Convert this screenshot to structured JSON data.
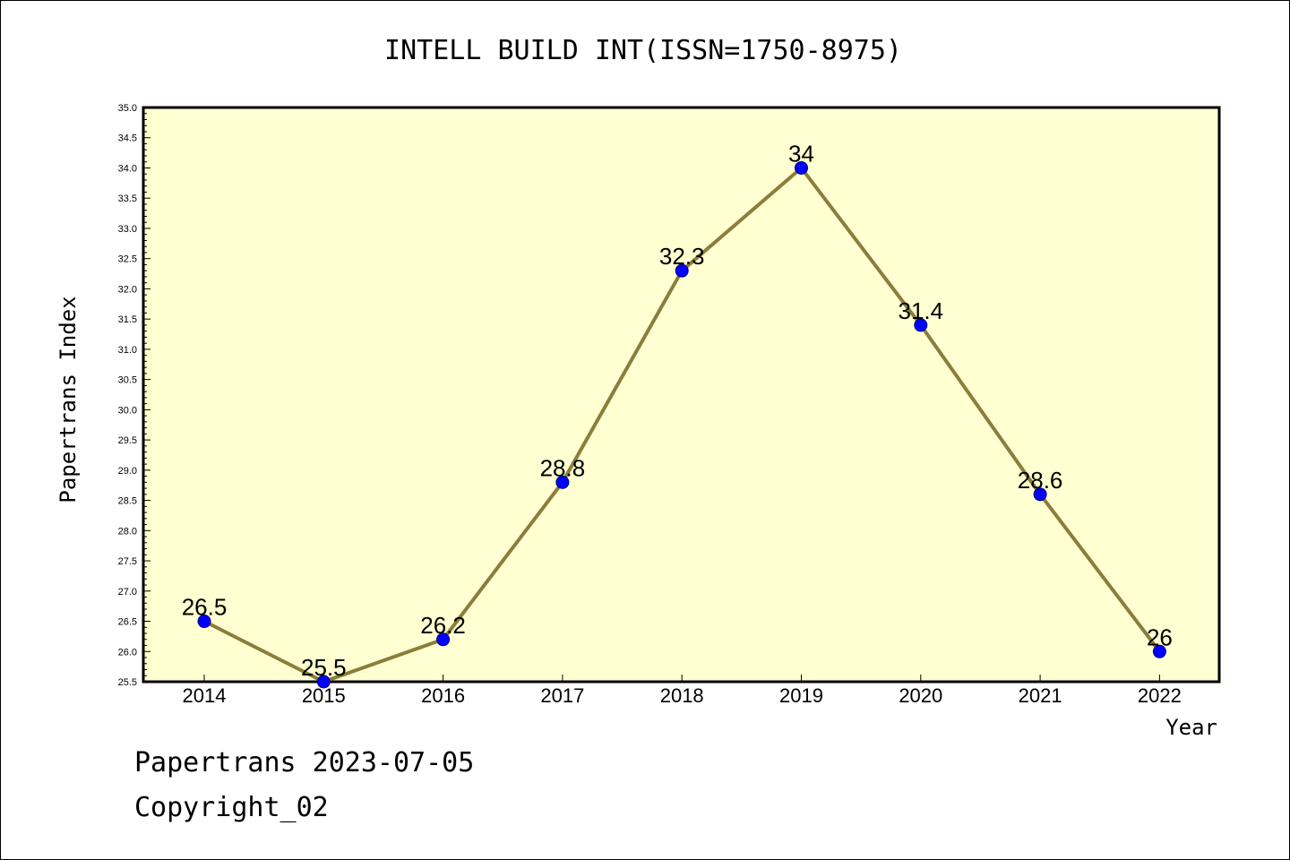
{
  "footer": {
    "date_line": "Papertrans 2023-07-05",
    "copyright": "Copyright_02"
  },
  "colors": {
    "plot_background": "#ffffd1",
    "line": "#8b7d3a",
    "marker": "#0000ff"
  },
  "chart_data": {
    "type": "line",
    "title": "INTELL BUILD INT(ISSN=1750-8975)",
    "xlabel": "Year",
    "ylabel": "Papertrans Index",
    "categories": [
      "2014",
      "2015",
      "2016",
      "2017",
      "2018",
      "2019",
      "2020",
      "2021",
      "2022"
    ],
    "series": [
      {
        "values": [
          26.5,
          25.5,
          26.2,
          28.8,
          32.3,
          34,
          31.4,
          28.6,
          26
        ],
        "data_labels": [
          "26.5",
          "25.5",
          "26.2",
          "28.8",
          "32.3",
          "34",
          "31.4",
          "28.6",
          "26"
        ]
      }
    ],
    "ylim": [
      25.5,
      35.0
    ],
    "y_major_step": 0.5,
    "y_tick_labels": [
      "25.5",
      "26.0",
      "26.5",
      "27.0",
      "27.5",
      "28.0",
      "28.5",
      "29.0",
      "29.5",
      "30.0",
      "30.5",
      "31.0",
      "31.5",
      "32.0",
      "32.5",
      "33.0",
      "33.5",
      "34.0",
      "34.5",
      "35.0"
    ],
    "grid": false,
    "legend": "none"
  }
}
